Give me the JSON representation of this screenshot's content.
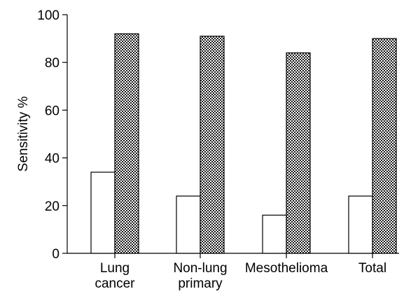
{
  "chart_data": {
    "type": "bar",
    "categories": [
      [
        "Lung",
        "cancer"
      ],
      [
        "Non-lung",
        "primary"
      ],
      [
        "Mesothelioma"
      ],
      [
        "Total"
      ]
    ],
    "series": [
      {
        "fill": "open",
        "values": [
          34,
          24,
          16,
          24
        ]
      },
      {
        "fill": "checkered",
        "values": [
          92,
          91,
          84,
          90
        ]
      }
    ],
    "ylabel": "Sensitivity %",
    "ylim": [
      0,
      100
    ],
    "yticks": [
      0,
      20,
      40,
      60,
      80,
      100
    ],
    "grid": false
  }
}
